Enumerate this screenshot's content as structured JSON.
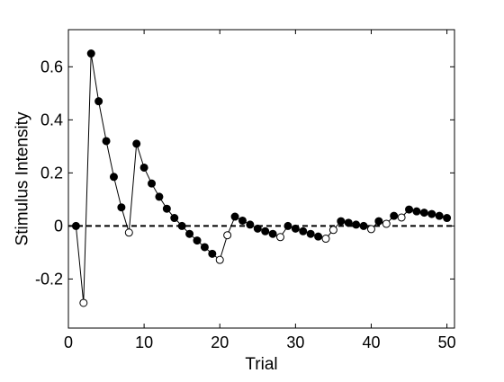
{
  "chart_data": {
    "type": "scatter",
    "xlabel": "Trial",
    "ylabel": "Stimulus Intensity",
    "xlim": [
      0,
      51
    ],
    "ylim": [
      -0.385,
      0.74
    ],
    "x_ticks": [
      0,
      10,
      20,
      30,
      40,
      50
    ],
    "y_ticks": [
      -0.2,
      0,
      0.2,
      0.4,
      0.6
    ],
    "y_tick_labels": [
      "-0.2",
      "0",
      "0.2",
      "0.4",
      "0.6"
    ],
    "grid": false,
    "legend": "none",
    "reference_line": {
      "y": 0,
      "style": "dashed"
    },
    "series": [
      {
        "line_color": "#000000",
        "marker": "circle",
        "points": [
          {
            "x": 1,
            "y": 0.0,
            "filled": true
          },
          {
            "x": 2,
            "y": -0.29,
            "filled": false
          },
          {
            "x": 3,
            "y": 0.65,
            "filled": true
          },
          {
            "x": 4,
            "y": 0.47,
            "filled": true
          },
          {
            "x": 5,
            "y": 0.32,
            "filled": true
          },
          {
            "x": 6,
            "y": 0.185,
            "filled": true
          },
          {
            "x": 7,
            "y": 0.07,
            "filled": true
          },
          {
            "x": 8,
            "y": -0.025,
            "filled": false
          },
          {
            "x": 9,
            "y": 0.31,
            "filled": true
          },
          {
            "x": 10,
            "y": 0.22,
            "filled": true
          },
          {
            "x": 11,
            "y": 0.16,
            "filled": true
          },
          {
            "x": 12,
            "y": 0.11,
            "filled": true
          },
          {
            "x": 13,
            "y": 0.065,
            "filled": true
          },
          {
            "x": 14,
            "y": 0.03,
            "filled": true
          },
          {
            "x": 15,
            "y": 0.0,
            "filled": true
          },
          {
            "x": 16,
            "y": -0.03,
            "filled": true
          },
          {
            "x": 17,
            "y": -0.055,
            "filled": true
          },
          {
            "x": 18,
            "y": -0.08,
            "filled": true
          },
          {
            "x": 19,
            "y": -0.105,
            "filled": true
          },
          {
            "x": 20,
            "y": -0.128,
            "filled": false
          },
          {
            "x": 21,
            "y": -0.035,
            "filled": false
          },
          {
            "x": 22,
            "y": 0.035,
            "filled": true
          },
          {
            "x": 23,
            "y": 0.02,
            "filled": true
          },
          {
            "x": 24,
            "y": 0.005,
            "filled": true
          },
          {
            "x": 25,
            "y": -0.01,
            "filled": true
          },
          {
            "x": 26,
            "y": -0.02,
            "filled": true
          },
          {
            "x": 27,
            "y": -0.03,
            "filled": true
          },
          {
            "x": 28,
            "y": -0.042,
            "filled": false
          },
          {
            "x": 29,
            "y": 0.0,
            "filled": true
          },
          {
            "x": 30,
            "y": -0.01,
            "filled": true
          },
          {
            "x": 31,
            "y": -0.02,
            "filled": true
          },
          {
            "x": 32,
            "y": -0.03,
            "filled": true
          },
          {
            "x": 33,
            "y": -0.04,
            "filled": true
          },
          {
            "x": 34,
            "y": -0.048,
            "filled": false
          },
          {
            "x": 35,
            "y": -0.015,
            "filled": false
          },
          {
            "x": 36,
            "y": 0.018,
            "filled": true
          },
          {
            "x": 37,
            "y": 0.012,
            "filled": true
          },
          {
            "x": 38,
            "y": 0.005,
            "filled": true
          },
          {
            "x": 39,
            "y": 0.0,
            "filled": true
          },
          {
            "x": 40,
            "y": -0.012,
            "filled": false
          },
          {
            "x": 41,
            "y": 0.018,
            "filled": true
          },
          {
            "x": 42,
            "y": 0.008,
            "filled": false
          },
          {
            "x": 43,
            "y": 0.038,
            "filled": true
          },
          {
            "x": 44,
            "y": 0.032,
            "filled": false
          },
          {
            "x": 45,
            "y": 0.062,
            "filled": true
          },
          {
            "x": 46,
            "y": 0.055,
            "filled": true
          },
          {
            "x": 47,
            "y": 0.05,
            "filled": true
          },
          {
            "x": 48,
            "y": 0.045,
            "filled": true
          },
          {
            "x": 49,
            "y": 0.038,
            "filled": true
          },
          {
            "x": 50,
            "y": 0.03,
            "filled": true
          }
        ]
      }
    ]
  }
}
